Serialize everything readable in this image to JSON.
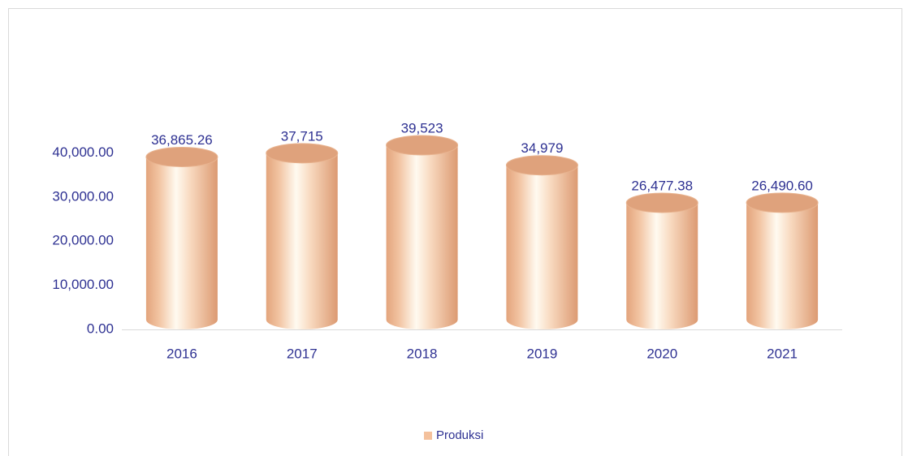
{
  "chart_data": {
    "type": "bar",
    "categories": [
      "2016",
      "2017",
      "2018",
      "2019",
      "2020",
      "2021"
    ],
    "series": [
      {
        "name": "Produksi",
        "color": "#f4c19c",
        "values": [
          36865.26,
          37715,
          39523,
          34979,
          26477.38,
          26490.6
        ],
        "value_labels": [
          "36,865.26",
          "37,715",
          "39,523",
          "34,979",
          "26,477.38",
          "26,490.60"
        ]
      }
    ],
    "ylim": [
      0,
      50000
    ],
    "yticks": [
      {
        "value": 0,
        "label": "0.00"
      },
      {
        "value": 10000,
        "label": "10,000.00"
      },
      {
        "value": 20000,
        "label": "20,000.00"
      },
      {
        "value": 30000,
        "label": "30,000.00"
      },
      {
        "value": 40000,
        "label": "40,000.00"
      }
    ],
    "grid": false,
    "legend": "bottom"
  }
}
